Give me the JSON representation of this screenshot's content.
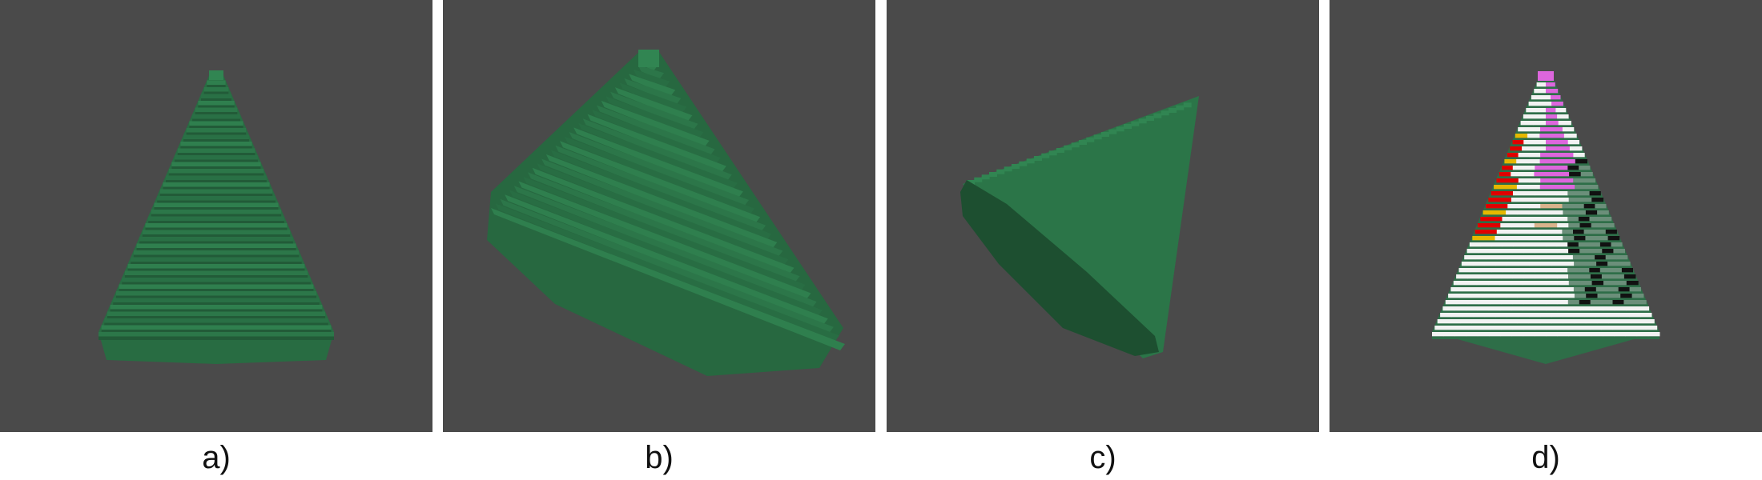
{
  "figure": {
    "background": "#4a4a4a",
    "voxel_color": "#2f7f4e",
    "panels": [
      {
        "id": "a",
        "label": "a)",
        "view": "front"
      },
      {
        "id": "b",
        "label": "b)",
        "view": "tilted-left"
      },
      {
        "id": "c",
        "label": "c)",
        "view": "tilted-base"
      },
      {
        "id": "d",
        "label": "d)",
        "view": "colored-clusters",
        "cluster_colors": [
          "#f2f2f2",
          "#dd66dd",
          "#e00000",
          "#e6b800",
          "#111111",
          "#d9b38c",
          "#6b8f7a"
        ]
      }
    ]
  }
}
